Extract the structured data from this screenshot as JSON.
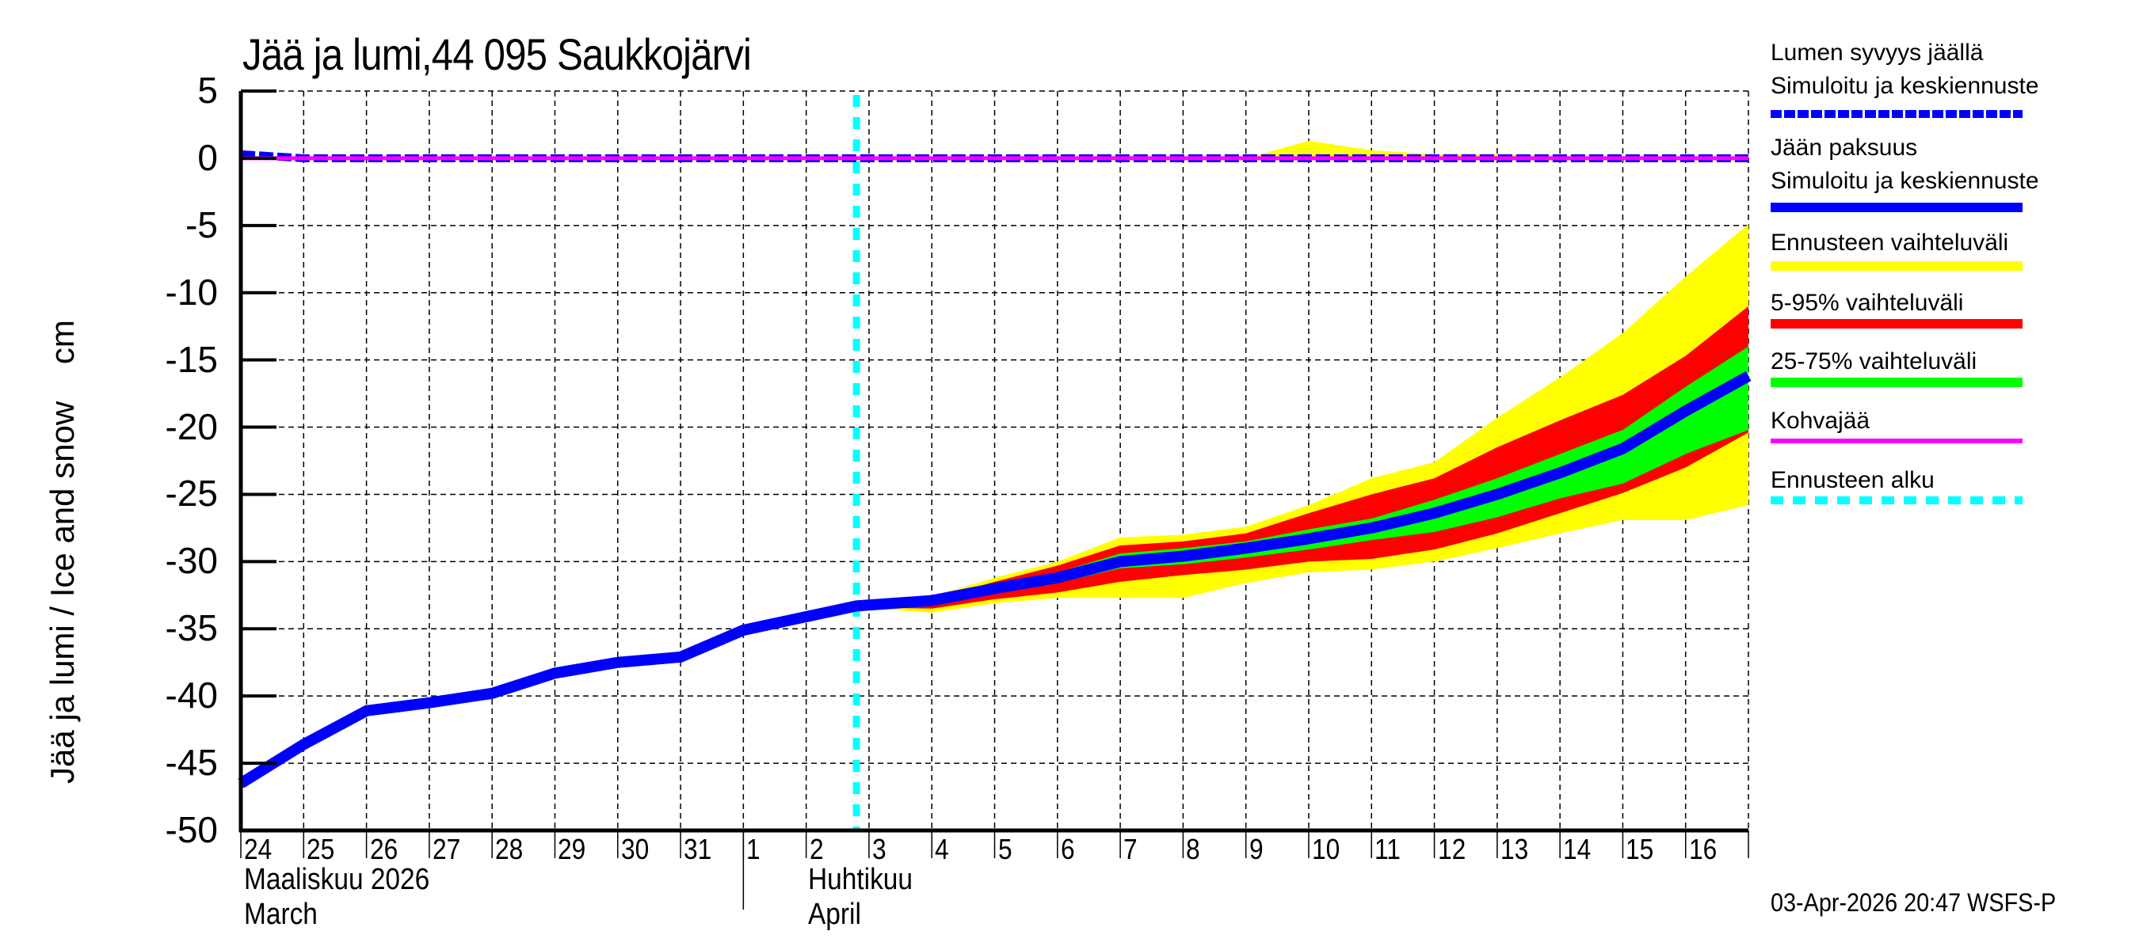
{
  "chart_data": {
    "type": "area",
    "title": "Jää ja lumi,44 095 Saukkojärvi",
    "ylabel": "Jää ja lumi / Ice and snow    cm",
    "xlabel": "",
    "ylim": [
      -50,
      5
    ],
    "yticks": [
      5,
      0,
      -5,
      -10,
      -15,
      -20,
      -25,
      -30,
      -35,
      -40,
      -45,
      -50
    ],
    "grid": true,
    "legend_position": "right",
    "x": [
      "24",
      "25",
      "26",
      "27",
      "28",
      "29",
      "30",
      "31",
      "1",
      "2",
      "3",
      "4",
      "5",
      "6",
      "7",
      "8",
      "9",
      "10",
      "11",
      "12",
      "13",
      "14",
      "15",
      "16"
    ],
    "month_labels": [
      {
        "label_fi": "Maaliskuu 2026",
        "label_en": "March",
        "start_index": 0
      },
      {
        "label_fi": "Huhtikuu",
        "label_en": "April",
        "start_index": 8
      }
    ],
    "forecast_start_index": 9.8,
    "series": [
      {
        "name": "Jään paksuus – Simuloitu ja keskiennuste",
        "color": "#0000ff",
        "style": "solid",
        "x_index": [
          0,
          1,
          2,
          3,
          4,
          5,
          6,
          7,
          8,
          9,
          9.8,
          11,
          12,
          13,
          14,
          15,
          16,
          17,
          18,
          19,
          20,
          21,
          22,
          23,
          24
        ],
        "values": [
          -46.5,
          -43.6,
          -41.1,
          -40.5,
          -39.8,
          -38.3,
          -37.5,
          -37.1,
          -35.1,
          -34.1,
          -33.3,
          -32.9,
          -32.0,
          -31.2,
          -30.0,
          -29.6,
          -29.0,
          -28.3,
          -27.5,
          -26.4,
          -25.0,
          -23.4,
          -21.6,
          -18.8,
          -16.2
        ]
      },
      {
        "name": "Lumen syvyys jäällä – Simuloitu ja keskiennuste",
        "color": "#0000ff",
        "style": "dashed",
        "x_index": [
          0,
          1,
          24
        ],
        "values": [
          0.3,
          0,
          0
        ]
      },
      {
        "name": "Kohvajää",
        "color": "#ff00ff",
        "style": "solid",
        "x_index": [
          0,
          24
        ],
        "values": [
          0,
          0
        ]
      }
    ],
    "bands": [
      {
        "name": "Ennusteen vaihteluväli",
        "color": "#ffff00",
        "x_index": [
          9.8,
          11,
          12,
          13,
          14,
          15,
          16,
          17,
          18,
          19,
          20,
          21,
          22,
          23,
          24
        ],
        "upper": [
          -33.2,
          -32.6,
          -31.2,
          -30.0,
          -28.2,
          -28.0,
          -27.4,
          -25.8,
          -23.8,
          -22.6,
          -19.3,
          -16.3,
          -13.0,
          -8.8,
          -4.9
        ],
        "lower": [
          -33.4,
          -33.8,
          -33.1,
          -32.7,
          -32.7,
          -32.7,
          -31.6,
          -30.8,
          -30.6,
          -30.0,
          -29.0,
          -27.9,
          -26.9,
          -26.9,
          -25.8
        ]
      },
      {
        "name": "5-95% vaihteluväli",
        "color": "#ff0000",
        "x_index": [
          9.8,
          11,
          12,
          13,
          14,
          15,
          16,
          17,
          18,
          19,
          20,
          21,
          22,
          23,
          24
        ],
        "upper": [
          -33.2,
          -32.8,
          -31.5,
          -30.3,
          -28.8,
          -28.5,
          -27.9,
          -26.4,
          -25.0,
          -23.8,
          -21.5,
          -19.5,
          -17.6,
          -14.7,
          -11.0
        ],
        "lower": [
          -33.4,
          -33.5,
          -32.8,
          -32.3,
          -31.5,
          -31.0,
          -30.6,
          -30.0,
          -29.8,
          -29.1,
          -27.9,
          -26.4,
          -24.9,
          -23.0,
          -20.4
        ]
      },
      {
        "name": "25-75% vaihteluväli",
        "color": "#00ff00",
        "x_index": [
          9.8,
          11,
          12,
          13,
          14,
          15,
          16,
          17,
          18,
          19,
          20,
          21,
          22,
          23,
          24
        ],
        "upper": [
          -33.2,
          -32.7,
          -31.7,
          -30.8,
          -29.4,
          -29.0,
          -28.5,
          -27.6,
          -26.8,
          -25.4,
          -23.8,
          -22.0,
          -20.2,
          -17.0,
          -14.0
        ],
        "lower": [
          -33.4,
          -33.1,
          -32.3,
          -31.6,
          -30.5,
          -30.2,
          -29.7,
          -29.1,
          -28.4,
          -27.8,
          -26.7,
          -25.3,
          -24.2,
          -22.0,
          -20.2
        ]
      },
      {
        "name": "Lumen syvyys – ennusteen vaihteluväli",
        "color": "#ffff00",
        "x_index": [
          13,
          14,
          16,
          17,
          18,
          19,
          20,
          21,
          22
        ],
        "upper": [
          0,
          0.2,
          0,
          1.3,
          0.6,
          0.3,
          0.3,
          0.2,
          0
        ],
        "lower": [
          0,
          0,
          0,
          0,
          0,
          0,
          0,
          0,
          0
        ]
      }
    ]
  },
  "header": {
    "title": "Jää ja lumi,44 095 Saukkojärvi"
  },
  "axes": {
    "ylabel": "Jää ja lumi / Ice and snow    cm",
    "yticks": [
      "5",
      "0",
      "-5",
      "-10",
      "-15",
      "-20",
      "-25",
      "-30",
      "-35",
      "-40",
      "-45",
      "-50"
    ],
    "xticks": [
      "24",
      "25",
      "26",
      "27",
      "28",
      "29",
      "30",
      "31",
      "1",
      "2",
      "3",
      "4",
      "5",
      "6",
      "7",
      "8",
      "9",
      "10",
      "11",
      "12",
      "13",
      "14",
      "15",
      "16"
    ],
    "month1_fi": "Maaliskuu 2026",
    "month1_en": "March",
    "month2_fi": "Huhtikuu",
    "month2_en": "April"
  },
  "legend": {
    "items": [
      {
        "line1": "Lumen syvyys jäällä",
        "line2": "Simuloitu ja keskiennuste",
        "color": "#0000ff",
        "style": "dashed"
      },
      {
        "line1": "Jään paksuus",
        "line2": "Simuloitu ja keskiennuste",
        "color": "#0000ff",
        "style": "solid"
      },
      {
        "line1": "Ennusteen vaihteluväli",
        "color": "#ffff00",
        "style": "solid"
      },
      {
        "line1": "5-95% vaihteluväli",
        "color": "#ff0000",
        "style": "solid"
      },
      {
        "line1": "25-75% vaihteluväli",
        "color": "#00ff00",
        "style": "solid"
      },
      {
        "line1": "Kohvajää",
        "color": "#ff00ff",
        "style": "thin"
      },
      {
        "line1": "Ennusteen alku",
        "color": "#00ffff",
        "style": "dotted"
      }
    ]
  },
  "footer": {
    "timestamp": "03-Apr-2026 20:47 WSFS-P"
  }
}
